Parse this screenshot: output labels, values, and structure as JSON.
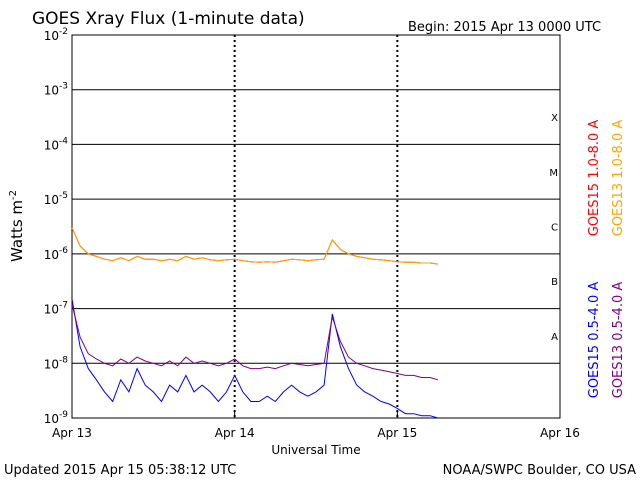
{
  "chart_data": {
    "type": "line",
    "title": "GOES Xray Flux (1-minute data)",
    "begin_label": "Begin:  2015 Apr 13 0000 UTC",
    "xlabel": "Universal Time",
    "ylabel": "Watts m",
    "ylabel_superscript": "-2",
    "x_unit": "days since 2015 Apr 13 0000 UTC",
    "xlim": [
      0,
      3
    ],
    "x_ticks": [
      {
        "value": 0,
        "label": "Apr 13"
      },
      {
        "value": 1,
        "label": "Apr 14"
      },
      {
        "value": 2,
        "label": "Apr 15"
      },
      {
        "value": 3,
        "label": "Apr 16"
      }
    ],
    "y_scale": "log",
    "ylim": [
      1e-09,
      0.01
    ],
    "y_ticks": [
      {
        "value": 1e-09,
        "mantissa": "10",
        "exp": "-9"
      },
      {
        "value": 1e-08,
        "mantissa": "10",
        "exp": "-8"
      },
      {
        "value": 1e-07,
        "mantissa": "10",
        "exp": "-7"
      },
      {
        "value": 1e-06,
        "mantissa": "10",
        "exp": "-6"
      },
      {
        "value": 1e-05,
        "mantissa": "10",
        "exp": "-5"
      },
      {
        "value": 0.0001,
        "mantissa": "10",
        "exp": "-4"
      },
      {
        "value": 0.001,
        "mantissa": "10",
        "exp": "-3"
      },
      {
        "value": 0.01,
        "mantissa": "10",
        "exp": "-2"
      }
    ],
    "flare_classes": [
      {
        "label": "A",
        "lower": 1e-08
      },
      {
        "label": "B",
        "lower": 1e-07
      },
      {
        "label": "C",
        "lower": 1e-06
      },
      {
        "label": "M",
        "lower": 1e-05
      },
      {
        "label": "X",
        "lower": 0.0001
      }
    ],
    "grid": true,
    "legend_placement": "right, rotated",
    "series": [
      {
        "name": "GOES15 1.0-8.0 A",
        "color": "#ff0000",
        "x": [
          0.0,
          0.05,
          0.1,
          0.15,
          0.2,
          0.25,
          0.3,
          0.35,
          0.4,
          0.45,
          0.5,
          0.55,
          0.6,
          0.65,
          0.7,
          0.75,
          0.8,
          0.85,
          0.9,
          0.95,
          1.0,
          1.05,
          1.1,
          1.15,
          1.2,
          1.25,
          1.3,
          1.35,
          1.4,
          1.45,
          1.5,
          1.55,
          1.6,
          1.65,
          1.7,
          1.75,
          1.8,
          1.85,
          1.9,
          1.95,
          2.0,
          2.05,
          2.1,
          2.15,
          2.2,
          2.25
        ],
        "y": [
          3e-06,
          1.4e-06,
          1e-06,
          9e-07,
          8e-07,
          7.5e-07,
          8.5e-07,
          7.5e-07,
          9e-07,
          8e-07,
          8e-07,
          7.5e-07,
          8e-07,
          7.5e-07,
          9e-07,
          8e-07,
          8.5e-07,
          7.8e-07,
          7.5e-07,
          7.8e-07,
          8e-07,
          7.5e-07,
          7.2e-07,
          7e-07,
          7.2e-07,
          7e-07,
          7.5e-07,
          8e-07,
          7.8e-07,
          7.5e-07,
          7.8e-07,
          8e-07,
          1.8e-06,
          1.2e-06,
          1e-06,
          9e-07,
          8.5e-07,
          8e-07,
          7.8e-07,
          7.5e-07,
          7.2e-07,
          7e-07,
          7e-07,
          6.8e-07,
          6.8e-07,
          6.5e-07
        ]
      },
      {
        "name": "GOES13 1.0-8.0 A",
        "color": "#ffa500",
        "x": [
          0.0,
          0.05,
          0.1,
          0.15,
          0.2,
          0.25,
          0.3,
          0.35,
          0.4,
          0.45,
          0.5,
          0.55,
          0.6,
          0.65,
          0.7,
          0.75,
          0.8,
          0.85,
          0.9,
          0.95,
          1.0,
          1.05,
          1.1,
          1.15,
          1.2,
          1.25,
          1.3,
          1.35,
          1.4,
          1.45,
          1.5,
          1.55,
          1.6,
          1.65,
          1.7,
          1.75,
          1.8,
          1.85,
          1.9,
          1.95,
          2.0,
          2.05,
          2.1,
          2.15,
          2.2,
          2.25
        ],
        "y": [
          3e-06,
          1.4e-06,
          1e-06,
          9e-07,
          8e-07,
          7.5e-07,
          8.5e-07,
          7.5e-07,
          9e-07,
          8e-07,
          8e-07,
          7.5e-07,
          8e-07,
          7.5e-07,
          9e-07,
          8e-07,
          8.5e-07,
          7.8e-07,
          7.5e-07,
          7.8e-07,
          8e-07,
          7.5e-07,
          7.2e-07,
          7e-07,
          7.2e-07,
          7e-07,
          7.5e-07,
          8e-07,
          7.8e-07,
          7.5e-07,
          7.8e-07,
          8e-07,
          1.8e-06,
          1.2e-06,
          1e-06,
          9e-07,
          8.5e-07,
          8e-07,
          7.8e-07,
          7.5e-07,
          7.2e-07,
          7e-07,
          7e-07,
          6.8e-07,
          6.8e-07,
          6.5e-07
        ]
      },
      {
        "name": "GOES15 0.5-4.0 A",
        "color": "#0000ff",
        "x": [
          0.0,
          0.05,
          0.1,
          0.15,
          0.2,
          0.25,
          0.3,
          0.35,
          0.4,
          0.45,
          0.5,
          0.55,
          0.6,
          0.65,
          0.7,
          0.75,
          0.8,
          0.85,
          0.9,
          0.95,
          1.0,
          1.05,
          1.1,
          1.15,
          1.2,
          1.25,
          1.3,
          1.35,
          1.4,
          1.45,
          1.5,
          1.55,
          1.6,
          1.65,
          1.7,
          1.75,
          1.8,
          1.85,
          1.9,
          1.95,
          2.0,
          2.05,
          2.1,
          2.15,
          2.2,
          2.25
        ],
        "y": [
          1.5e-07,
          2e-08,
          8e-09,
          5e-09,
          3e-09,
          2e-09,
          5e-09,
          3e-09,
          8e-09,
          4e-09,
          3e-09,
          2e-09,
          4e-09,
          3e-09,
          6e-09,
          3e-09,
          4e-09,
          3e-09,
          2e-09,
          3e-09,
          6e-09,
          3e-09,
          2e-09,
          2e-09,
          2.5e-09,
          2e-09,
          3e-09,
          4e-09,
          3e-09,
          2.5e-09,
          3e-09,
          4e-09,
          8e-08,
          2e-08,
          8e-09,
          4e-09,
          3e-09,
          2.5e-09,
          2e-09,
          1.8e-09,
          1.5e-09,
          1.2e-09,
          1.2e-09,
          1.1e-09,
          1.1e-09,
          1e-09
        ]
      },
      {
        "name": "GOES13 0.5-4.0 A",
        "color": "#800080",
        "x": [
          0.0,
          0.05,
          0.1,
          0.15,
          0.2,
          0.25,
          0.3,
          0.35,
          0.4,
          0.45,
          0.5,
          0.55,
          0.6,
          0.65,
          0.7,
          0.75,
          0.8,
          0.85,
          0.9,
          0.95,
          1.0,
          1.05,
          1.1,
          1.15,
          1.2,
          1.25,
          1.3,
          1.35,
          1.4,
          1.45,
          1.5,
          1.55,
          1.6,
          1.65,
          1.7,
          1.75,
          1.8,
          1.85,
          1.9,
          1.95,
          2.0,
          2.05,
          2.1,
          2.15,
          2.2,
          2.25
        ],
        "y": [
          1.2e-07,
          3e-08,
          1.5e-08,
          1.2e-08,
          1e-08,
          9e-09,
          1.2e-08,
          1e-08,
          1.3e-08,
          1.1e-08,
          1e-08,
          9e-09,
          1.1e-08,
          9e-09,
          1.3e-08,
          1e-08,
          1.1e-08,
          1e-08,
          9e-09,
          1e-08,
          1.2e-08,
          9e-09,
          8e-09,
          8e-09,
          8.5e-09,
          8e-09,
          9e-09,
          1e-08,
          9.5e-09,
          9e-09,
          9.5e-09,
          1e-08,
          7e-08,
          2.5e-08,
          1.3e-08,
          1e-08,
          9e-09,
          8e-09,
          7.5e-09,
          7e-09,
          6.5e-09,
          6e-09,
          6e-09,
          5.5e-09,
          5.5e-09,
          5e-09
        ]
      }
    ]
  },
  "footer": {
    "updated": "Updated 2015 Apr 15 05:38:12 UTC",
    "credit": "NOAA/SWPC Boulder, CO USA"
  }
}
